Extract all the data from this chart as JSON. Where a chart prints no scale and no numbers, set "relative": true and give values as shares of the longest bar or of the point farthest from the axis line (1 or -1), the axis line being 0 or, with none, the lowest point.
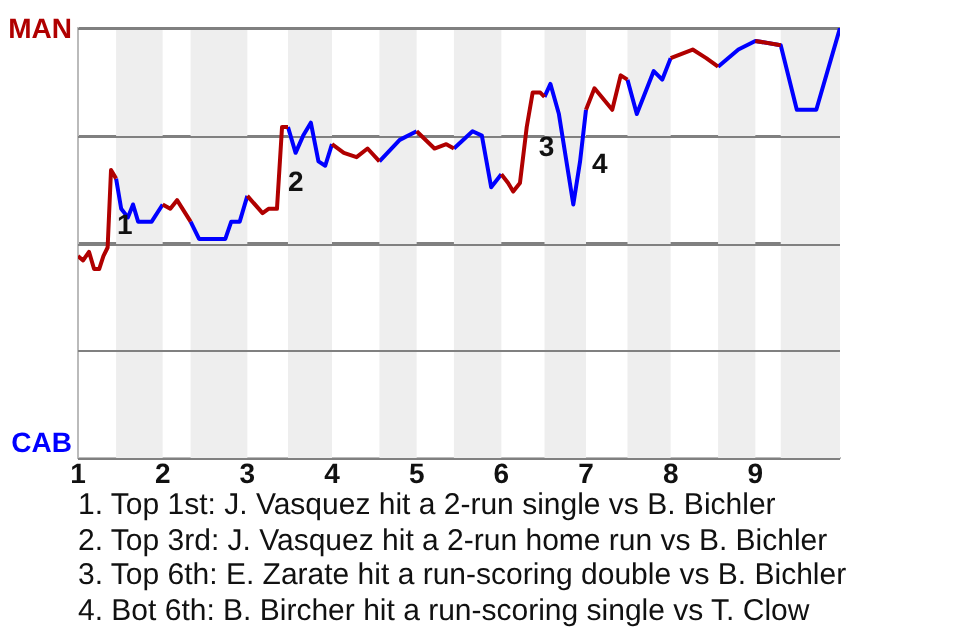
{
  "chart_data": {
    "type": "line",
    "x": [
      1.0,
      1.06,
      1.13,
      1.19,
      1.25,
      1.3,
      1.35,
      1.39,
      1.45,
      1.51,
      1.59,
      1.65,
      1.71,
      1.87,
      2.0,
      2.09,
      2.17,
      2.33,
      2.43,
      2.74,
      2.81,
      2.91,
      3.0,
      3.18,
      3.25,
      3.35,
      3.41,
      3.48,
      3.57,
      3.66,
      3.75,
      3.84,
      3.92,
      4.0,
      4.14,
      4.29,
      4.42,
      4.56,
      4.8,
      5.0,
      5.21,
      5.35,
      5.44,
      5.66,
      5.77,
      5.88,
      6.0,
      6.08,
      6.14,
      6.22,
      6.3,
      6.37,
      6.46,
      6.51,
      6.58,
      6.68,
      6.85,
      6.93,
      7.0,
      7.1,
      7.31,
      7.41,
      7.49,
      7.6,
      7.8,
      7.9,
      8.0,
      8.26,
      8.42,
      8.56,
      8.8,
      9.0,
      9.3,
      9.49,
      9.72,
      10.0
    ],
    "xlim": [
      1,
      10
    ],
    "xticks": [
      1,
      2,
      3,
      4,
      5,
      6,
      7,
      8,
      9
    ],
    "relative": true,
    "series": [
      {
        "name": "MAN",
        "color": "#b00000",
        "values": [
          0.47,
          0.46,
          0.48,
          0.44,
          0.44,
          0.47,
          0.49,
          0.67,
          0.65,
          null,
          null,
          null,
          null,
          null,
          0.59,
          0.58,
          0.6,
          0.55,
          null,
          null,
          null,
          null,
          0.61,
          0.57,
          0.58,
          0.58,
          0.77,
          0.77,
          null,
          null,
          null,
          null,
          null,
          0.73,
          0.71,
          0.7,
          0.72,
          0.69,
          null,
          0.76,
          0.72,
          0.73,
          0.72,
          null,
          null,
          null,
          0.66,
          0.64,
          0.62,
          0.64,
          0.77,
          0.85,
          0.85,
          0.84,
          null,
          null,
          null,
          null,
          0.81,
          0.86,
          0.81,
          0.89,
          0.88,
          null,
          null,
          null,
          0.93,
          0.95,
          0.93,
          0.91,
          null,
          0.97,
          0.96,
          null,
          null,
          null
        ]
      },
      {
        "name": "CAB",
        "color": "#0000ff",
        "values": [
          null,
          null,
          null,
          null,
          null,
          null,
          null,
          null,
          0.65,
          0.58,
          0.56,
          0.59,
          0.55,
          0.55,
          0.59,
          null,
          null,
          0.55,
          0.51,
          0.51,
          0.55,
          0.55,
          0.61,
          null,
          null,
          null,
          null,
          0.77,
          0.71,
          0.75,
          0.78,
          0.69,
          0.68,
          0.73,
          null,
          null,
          null,
          0.69,
          0.74,
          0.76,
          null,
          null,
          0.72,
          0.76,
          0.75,
          0.63,
          0.66,
          null,
          null,
          null,
          null,
          null,
          null,
          0.84,
          0.87,
          0.8,
          0.59,
          0.69,
          0.81,
          null,
          null,
          null,
          0.88,
          0.8,
          0.9,
          0.88,
          0.93,
          null,
          null,
          0.91,
          0.95,
          0.97,
          0.96,
          0.81,
          0.81,
          1.0
        ]
      }
    ],
    "bands": [
      {
        "axis": "x",
        "from": 1.45,
        "to": 2.0,
        "color": "#eeeeee"
      },
      {
        "axis": "x",
        "from": 2.33,
        "to": 3.0,
        "color": "#eeeeee"
      },
      {
        "axis": "x",
        "from": 3.48,
        "to": 4.0,
        "color": "#eeeeee"
      },
      {
        "axis": "x",
        "from": 4.56,
        "to": 5.0,
        "color": "#eeeeee"
      },
      {
        "axis": "x",
        "from": 5.44,
        "to": 6.0,
        "color": "#eeeeee"
      },
      {
        "axis": "x",
        "from": 6.51,
        "to": 7.0,
        "color": "#eeeeee"
      },
      {
        "axis": "x",
        "from": 7.49,
        "to": 8.0,
        "color": "#eeeeee"
      },
      {
        "axis": "x",
        "from": 8.56,
        "to": 9.0,
        "color": "#eeeeee"
      },
      {
        "axis": "x",
        "from": 9.3,
        "to": 10.0,
        "color": "#eeeeee"
      }
    ],
    "grid": "y",
    "marker": "none",
    "annotations": [
      {
        "text": "1",
        "x": 1.39,
        "y": 0.67
      },
      {
        "text": "2",
        "x": 3.41,
        "y": 0.77
      },
      {
        "text": "3",
        "x": 6.37,
        "y": 0.85
      },
      {
        "text": "4",
        "x": 7.0,
        "y": 0.81
      },
      "1. Top 1st: J. Vasquez hit a 2-run single vs B. Bichler",
      "2. Top 3rd: J. Vasquez hit a 2-run home run vs B. Bichler",
      "3. Top 6th: E. Zarate hit a run-scoring double vs B. Bichler",
      "4. Bot 6th: B. Bircher hit a run-scoring single vs T. Clow"
    ]
  }
}
